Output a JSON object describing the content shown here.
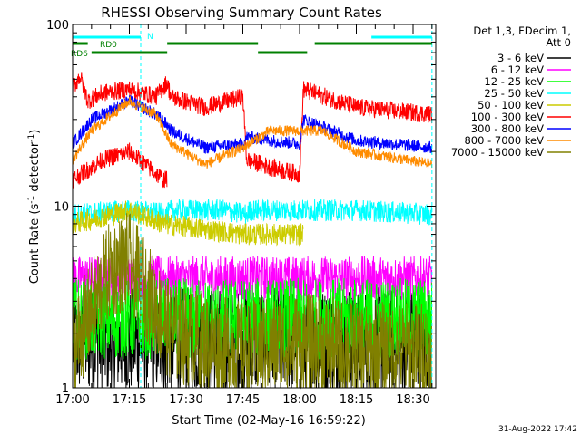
{
  "chart_data": {
    "type": "line",
    "title": "RHESSI Observing Summary Count Rates",
    "xlabel": "Start Time (02-May-16 16:59:22)",
    "ylabel": "Count Rate (s⁻¹ detector⁻¹)",
    "ylabel_parts": {
      "a": "Count Rate (s",
      "b": "-1",
      "c": " detector",
      "d": "-1",
      "e": ")"
    },
    "yscale": "log",
    "ylim": [
      1,
      100
    ],
    "xlim_minutes": [
      0,
      96
    ],
    "x_ticks": [
      {
        "label": "17:00",
        "minutes": 0
      },
      {
        "label": "17:15",
        "minutes": 15
      },
      {
        "label": "17:30",
        "minutes": 30
      },
      {
        "label": "17:45",
        "minutes": 45
      },
      {
        "label": "18:00",
        "minutes": 60
      },
      {
        "label": "18:15",
        "minutes": 75
      },
      {
        "label": "18:30",
        "minutes": 90
      }
    ],
    "y_ticks": [
      {
        "label": "1",
        "value": 1
      },
      {
        "label": "10",
        "value": 10
      },
      {
        "label": "100",
        "value": 100
      }
    ],
    "grid": false,
    "legend_position": "top-right",
    "legend_header": [
      "Det 1,3, FDecim 1,",
      "Att 0"
    ],
    "series": [
      {
        "name": "3 - 6 keV",
        "color": "#000000",
        "points": [
          [
            0,
            1.8
          ],
          [
            15,
            1.8
          ],
          [
            26,
            1.8
          ],
          [
            45,
            1.8
          ],
          [
            60,
            1.8
          ],
          [
            75,
            1.8
          ],
          [
            95,
            1.8
          ]
        ]
      },
      {
        "name": "6 - 12 keV",
        "color": "#ff00ff",
        "points": [
          [
            0,
            4
          ],
          [
            15,
            4
          ],
          [
            26,
            4
          ],
          [
            45,
            4
          ],
          [
            60,
            4
          ],
          [
            75,
            4
          ],
          [
            95,
            4
          ]
        ]
      },
      {
        "name": "12 - 25 keV",
        "color": "#00ff00",
        "points": [
          [
            0,
            2.4
          ],
          [
            15,
            2.4
          ],
          [
            26,
            2.4
          ],
          [
            45,
            2.4
          ],
          [
            60,
            2.4
          ],
          [
            75,
            2.4
          ],
          [
            95,
            2.4
          ]
        ]
      },
      {
        "name": "25 - 50 keV",
        "color": "#00ffff",
        "points": [
          [
            0,
            9
          ],
          [
            15,
            9.5
          ],
          [
            25,
            9
          ],
          [
            26,
            9.5
          ],
          [
            40,
            9.5
          ],
          [
            46,
            9
          ],
          [
            47,
            9.5
          ],
          [
            60,
            9.5
          ],
          [
            61,
            9.5
          ],
          [
            75,
            9.5
          ],
          [
            95,
            9
          ]
        ]
      },
      {
        "name": "50 - 100 keV",
        "color": "#cccc00",
        "points": [
          [
            0,
            8
          ],
          [
            15,
            9.5
          ],
          [
            24,
            8
          ],
          [
            45,
            7
          ],
          [
            46,
            7
          ],
          [
            60,
            7
          ],
          [
            61,
            7
          ]
        ]
      },
      {
        "name": "100 - 300 keV",
        "color": "#ff0000",
        "points": [
          [
            0,
            45
          ],
          [
            2,
            52
          ],
          [
            4,
            38
          ],
          [
            8,
            42
          ],
          [
            15,
            44
          ],
          [
            22,
            40
          ],
          [
            25,
            48
          ],
          [
            26,
            40
          ],
          [
            35,
            35
          ],
          [
            45,
            40
          ],
          [
            46,
            18
          ],
          [
            54,
            16
          ],
          [
            60,
            15
          ],
          [
            61,
            44
          ],
          [
            75,
            35
          ],
          [
            95,
            32
          ]
        ]
      },
      {
        "name": "300 - 800 keV",
        "color": "#0000ff",
        "points": [
          [
            0,
            22
          ],
          [
            5,
            30
          ],
          [
            15,
            38
          ],
          [
            22,
            32
          ],
          [
            25,
            28
          ],
          [
            26,
            26
          ],
          [
            35,
            21
          ],
          [
            45,
            22
          ],
          [
            46,
            24
          ],
          [
            60,
            22
          ],
          [
            61,
            30
          ],
          [
            75,
            23
          ],
          [
            95,
            21
          ]
        ]
      },
      {
        "name": "800 - 7000 keV",
        "color": "#ff8c00",
        "points": [
          [
            0,
            18
          ],
          [
            5,
            26
          ],
          [
            15,
            38
          ],
          [
            22,
            32
          ],
          [
            26,
            22
          ],
          [
            35,
            17
          ],
          [
            45,
            21
          ],
          [
            52,
            26
          ],
          [
            60,
            26
          ],
          [
            66,
            26
          ],
          [
            75,
            20
          ],
          [
            95,
            17
          ]
        ]
      },
      {
        "name": "7000 - 15000 keV",
        "color": "#808000",
        "points": [
          [
            0,
            1.6
          ],
          [
            10,
            4.5
          ],
          [
            15,
            5
          ],
          [
            26,
            2
          ],
          [
            45,
            1.6
          ],
          [
            60,
            1.8
          ],
          [
            75,
            1.6
          ],
          [
            95,
            1.6
          ]
        ]
      }
    ],
    "secondary_series": [
      {
        "name": "red lower band",
        "color": "#ff0000",
        "points": [
          [
            0,
            14
          ],
          [
            8,
            18
          ],
          [
            15,
            20
          ],
          [
            24,
            14
          ],
          [
            25,
            14
          ]
        ]
      }
    ],
    "annotations": {
      "flags": [
        {
          "label": "N",
          "color": "#00ffff",
          "segments": [
            [
              0,
              18
            ],
            [
              79,
              95
            ]
          ]
        },
        {
          "label": "RD0",
          "color": "#008000",
          "segments": [
            [
              0,
              4
            ],
            [
              25,
              49
            ],
            [
              64,
              95
            ]
          ]
        },
        {
          "label": "RD6",
          "color": "#008000",
          "segments": [
            [
              5,
              25
            ],
            [
              49,
              62
            ]
          ]
        }
      ],
      "vlines_cyan": [
        18,
        95
      ],
      "vlines_dashed": [
        18,
        95
      ]
    },
    "footer_date": "31-Aug-2022 17:42"
  }
}
